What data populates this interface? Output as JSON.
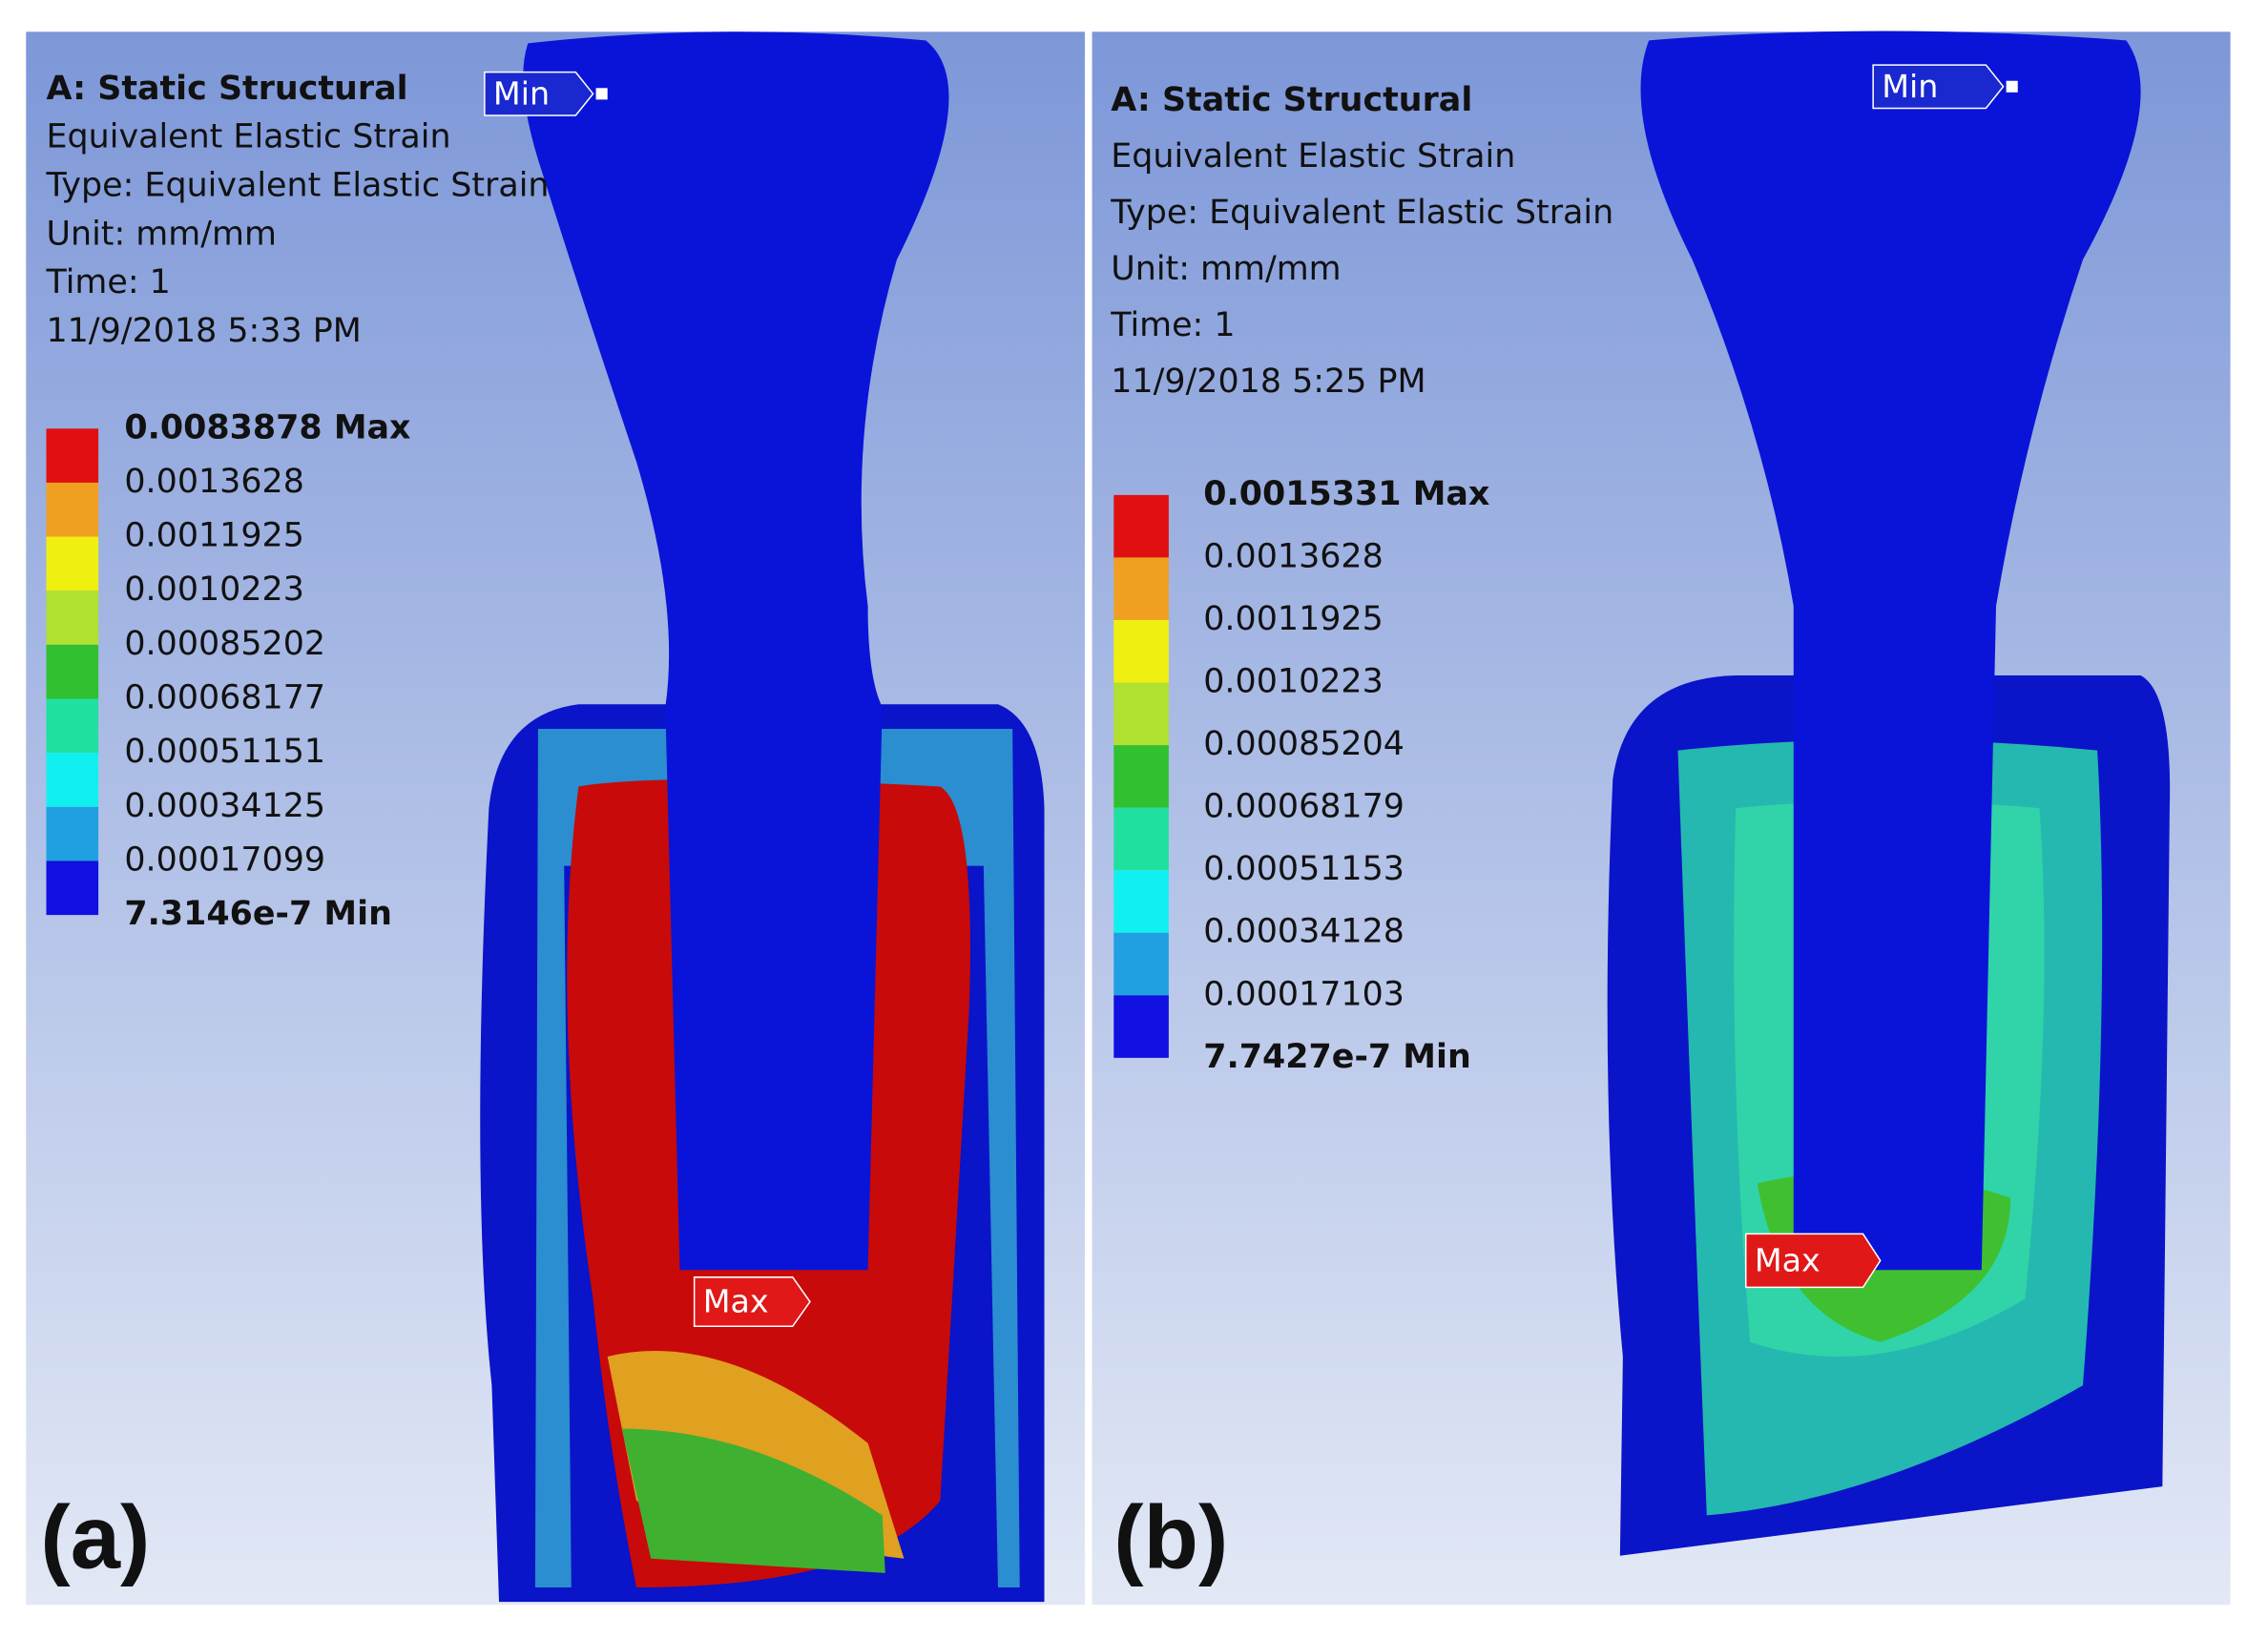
{
  "panels": [
    {
      "label": "(a)",
      "header": {
        "title": "A: Static Structural",
        "lines": [
          "Equivalent Elastic Strain",
          "Type: Equivalent Elastic Strain",
          "Unit: mm/mm",
          "Time: 1",
          "11/9/2018 5:33 PM"
        ]
      },
      "legend": [
        "0.0083878 Max",
        "0.0013628",
        "0.0011925",
        "0.0010223",
        "0.00085202",
        "0.00068177",
        "0.00051151",
        "0.00034125",
        "0.00017099",
        "7.3146e-7 Min"
      ],
      "min_tag": "Min",
      "max_tag": "Max"
    },
    {
      "label": "(b)",
      "header": {
        "title": "A: Static Structural",
        "lines": [
          "Equivalent Elastic Strain",
          "Type: Equivalent Elastic Strain",
          "Unit: mm/mm",
          "Time: 1",
          "11/9/2018 5:25 PM"
        ]
      },
      "legend": [
        "0.0015331 Max",
        "0.0013628",
        "0.0011925",
        "0.0010223",
        "0.00085204",
        "0.00068179",
        "0.00051153",
        "0.00034128",
        "0.00017103",
        "7.7427e-7 Min"
      ],
      "min_tag": "Min",
      "max_tag": "Max"
    }
  ]
}
